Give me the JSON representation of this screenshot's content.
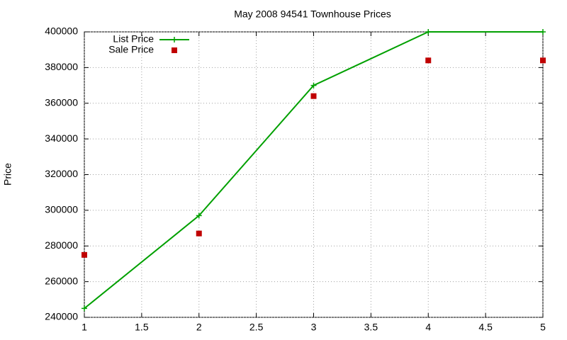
{
  "chart_data": {
    "type": "line",
    "title": "May 2008 94541 Townhouse Prices",
    "y_label": "Price",
    "x": [
      1,
      2,
      3,
      4,
      5
    ],
    "series": [
      {
        "name": "List Price",
        "color": "#00a000",
        "line": true,
        "marker": "plus",
        "values": [
          245000,
          297000,
          370000,
          400000,
          400000
        ]
      },
      {
        "name": "Sale Price",
        "color": "#c00000",
        "line": false,
        "marker": "square",
        "values": [
          275000,
          287000,
          364000,
          384000,
          384000
        ]
      }
    ],
    "xlim": [
      1,
      5
    ],
    "xticks": [
      1,
      1.5,
      2,
      2.5,
      3,
      3.5,
      4,
      4.5,
      5
    ],
    "ylim": [
      240000,
      400000
    ],
    "yticks": [
      240000,
      260000,
      280000,
      300000,
      320000,
      340000,
      360000,
      380000,
      400000
    ],
    "grid": true,
    "legend": "top-left"
  }
}
